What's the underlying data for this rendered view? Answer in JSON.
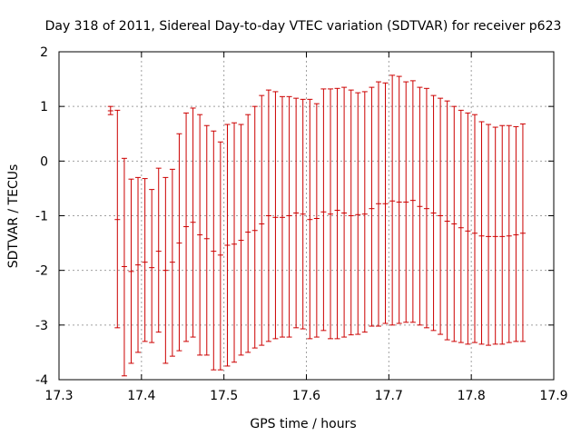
{
  "chart_data": {
    "type": "scatter",
    "style": "errorbars",
    "title": "Day 318 of 2011, Sidereal Day-to-day VTEC variation (SDTVAR) for receiver p623",
    "xlabel": "GPS time / hours",
    "ylabel": "SDTVAR / TECUs",
    "xlim": [
      17.3,
      17.9
    ],
    "ylim": [
      -4,
      2
    ],
    "xticks": [
      "17.3",
      "17.4",
      "17.5",
      "17.6",
      "17.7",
      "17.8",
      "17.9"
    ],
    "yticks": [
      "2",
      "1",
      "0",
      "-1",
      "-2",
      "-3",
      "-4"
    ],
    "grid": true,
    "legend": "none",
    "color": "#cc0000",
    "series": [
      {
        "x": [
          17.3625,
          17.3708,
          17.3792,
          17.3875,
          17.3958,
          17.4042,
          17.4125,
          17.4208,
          17.4292,
          17.4375,
          17.4458,
          17.4542,
          17.4625,
          17.4708,
          17.4792,
          17.4875,
          17.4958,
          17.5042,
          17.5125,
          17.5208,
          17.5292,
          17.5375,
          17.5458,
          17.5542,
          17.5625,
          17.5708,
          17.5792,
          17.5875,
          17.5958,
          17.6042,
          17.6125,
          17.6208,
          17.6292,
          17.6375,
          17.6458,
          17.6542,
          17.6625,
          17.6708,
          17.6792,
          17.6875,
          17.6958,
          17.7042,
          17.7125,
          17.7208,
          17.7292,
          17.7375,
          17.7458,
          17.7542,
          17.7625,
          17.7708,
          17.7792,
          17.7875,
          17.7958,
          17.8042,
          17.8125,
          17.8208,
          17.8292,
          17.8375,
          17.8458,
          17.8542,
          17.8625
        ],
        "y": [
          0.92,
          -1.07,
          -1.93,
          -2.02,
          -1.9,
          -1.85,
          -1.95,
          -1.65,
          -2.0,
          -1.85,
          -1.5,
          -1.2,
          -1.12,
          -1.35,
          -1.42,
          -1.65,
          -1.72,
          -1.54,
          -1.52,
          -1.45,
          -1.3,
          -1.27,
          -1.15,
          -1.0,
          -1.03,
          -1.03,
          -1.0,
          -0.95,
          -0.97,
          -1.07,
          -1.05,
          -0.93,
          -0.97,
          -0.9,
          -0.95,
          -1.0,
          -0.98,
          -0.97,
          -0.87,
          -0.78,
          -0.78,
          -0.73,
          -0.75,
          -0.75,
          -0.72,
          -0.83,
          -0.87,
          -0.95,
          -1.0,
          -1.1,
          -1.15,
          -1.22,
          -1.28,
          -1.32,
          -1.37,
          -1.38,
          -1.38,
          -1.38,
          -1.37,
          -1.35,
          -1.32
        ],
        "low": [
          0.85,
          -3.05,
          -3.93,
          -3.7,
          -3.5,
          -3.3,
          -3.32,
          -3.13,
          -3.7,
          -3.57,
          -3.47,
          -3.3,
          -3.22,
          -3.55,
          -3.55,
          -3.82,
          -3.82,
          -3.75,
          -3.68,
          -3.55,
          -3.5,
          -3.42,
          -3.37,
          -3.3,
          -3.25,
          -3.22,
          -3.22,
          -3.05,
          -3.07,
          -3.25,
          -3.22,
          -3.1,
          -3.25,
          -3.25,
          -3.22,
          -3.18,
          -3.17,
          -3.13,
          -3.02,
          -3.02,
          -2.97,
          -3.0,
          -2.97,
          -2.95,
          -2.95,
          -3.0,
          -3.05,
          -3.1,
          -3.17,
          -3.27,
          -3.3,
          -3.32,
          -3.35,
          -3.32,
          -3.35,
          -3.37,
          -3.35,
          -3.35,
          -3.32,
          -3.3,
          -3.3
        ],
        "high": [
          1.0,
          0.93,
          0.05,
          -0.33,
          -0.3,
          -0.32,
          -0.52,
          -0.13,
          -0.3,
          -0.15,
          0.5,
          0.88,
          0.97,
          0.85,
          0.65,
          0.55,
          0.35,
          0.67,
          0.7,
          0.67,
          0.85,
          1.0,
          1.2,
          1.3,
          1.27,
          1.18,
          1.18,
          1.15,
          1.13,
          1.13,
          1.05,
          1.32,
          1.32,
          1.33,
          1.35,
          1.3,
          1.25,
          1.27,
          1.35,
          1.45,
          1.43,
          1.57,
          1.55,
          1.45,
          1.47,
          1.35,
          1.33,
          1.2,
          1.15,
          1.1,
          1.0,
          0.93,
          0.88,
          0.85,
          0.72,
          0.67,
          0.62,
          0.65,
          0.65,
          0.63,
          0.68
        ]
      }
    ]
  }
}
